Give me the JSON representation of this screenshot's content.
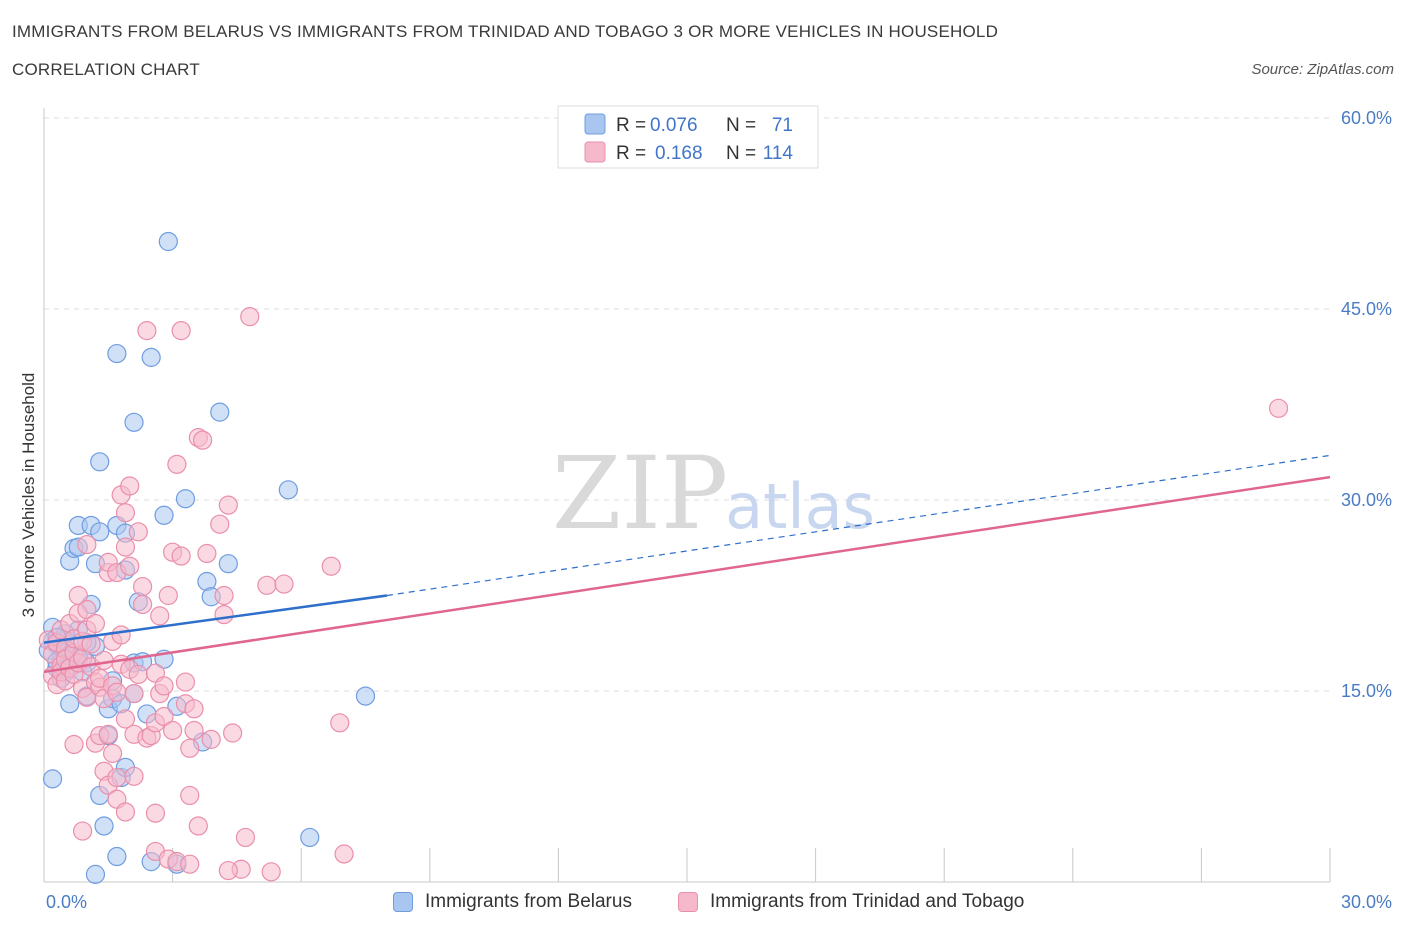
{
  "header": {
    "title": "IMMIGRANTS FROM BELARUS VS IMMIGRANTS FROM TRINIDAD AND TOBAGO 3 OR MORE VEHICLES IN HOUSEHOLD",
    "subtitle": "CORRELATION CHART",
    "source": "Source: ZipAtlas.com"
  },
  "watermark": {
    "zip": "ZIP",
    "atlas": "atlas"
  },
  "legend_top": {
    "series1": {
      "r_label": "R =",
      "r_value": "0.076",
      "n_label": "N =",
      "n_value": "71"
    },
    "series2": {
      "r_label": "R =",
      "r_value": "0.168",
      "n_label": "N =",
      "n_value": "114"
    }
  },
  "colors": {
    "belarus_fill": "#a9c6f0",
    "belarus_stroke": "#6f9de0",
    "belarus_line": "#2f6fcc",
    "trinidad_fill": "#f6b9cc",
    "trinidad_stroke": "#ea8fab",
    "trinidad_line": "#e06690",
    "tick_text": "#4a7cc6",
    "grid": "#dddddd"
  },
  "chart_data": {
    "type": "scatter",
    "title": "IMMIGRANTS FROM BELARUS VS IMMIGRANTS FROM TRINIDAD AND TOBAGO 3 OR MORE VEHICLES IN HOUSEHOLD",
    "subtitle": "CORRELATION CHART",
    "xlabel": "",
    "ylabel": "3 or more Vehicles in Household",
    "xlim": [
      0,
      30
    ],
    "ylim": [
      0,
      60
    ],
    "x_ticks": [
      "0.0%",
      "30.0%"
    ],
    "x_tick_values": [
      0,
      30
    ],
    "y_ticks": [
      "15.0%",
      "30.0%",
      "45.0%",
      "60.0%"
    ],
    "y_tick_values": [
      15,
      30,
      45,
      60
    ],
    "grid": true,
    "legend_position": "top-center",
    "series": [
      {
        "name": "Immigrants from Belarus",
        "R": 0.076,
        "N": 71,
        "trend": {
          "x": [
            0,
            8,
            30
          ],
          "y": [
            18.8,
            22.5,
            33.5
          ],
          "solid_until": 8
        },
        "points": [
          [
            0.2,
            20
          ],
          [
            0.3,
            18.6
          ],
          [
            0.4,
            17.5
          ],
          [
            0.5,
            19
          ],
          [
            0.5,
            16.5
          ],
          [
            0.6,
            17.8
          ],
          [
            0.3,
            16.8
          ],
          [
            0.8,
            19.8
          ],
          [
            0.2,
            8.1
          ],
          [
            0.6,
            25.2
          ],
          [
            0.6,
            14
          ],
          [
            0.7,
            26.2
          ],
          [
            0.8,
            26.3
          ],
          [
            0.8,
            28
          ],
          [
            1,
            17.2
          ],
          [
            1,
            14.6
          ],
          [
            1.1,
            28
          ],
          [
            1.1,
            21.8
          ],
          [
            1.2,
            25
          ],
          [
            1.2,
            18.5
          ],
          [
            1.2,
            0.6
          ],
          [
            1.3,
            33
          ],
          [
            1.3,
            6.8
          ],
          [
            1.3,
            27.5
          ],
          [
            1.4,
            4.4
          ],
          [
            1.5,
            11.5
          ],
          [
            1.5,
            13.6
          ],
          [
            1.6,
            15.8
          ],
          [
            1.6,
            14.4
          ],
          [
            1.7,
            28
          ],
          [
            1.8,
            14
          ],
          [
            1.8,
            8.2
          ],
          [
            1.7,
            2
          ],
          [
            1.7,
            41.5
          ],
          [
            1.9,
            9
          ],
          [
            1.9,
            27.4
          ],
          [
            1.9,
            24.5
          ],
          [
            2.1,
            14.8
          ],
          [
            2.1,
            17.2
          ],
          [
            2.1,
            36.1
          ],
          [
            2.2,
            22
          ],
          [
            2.3,
            17.3
          ],
          [
            2.4,
            13.2
          ],
          [
            2.5,
            41.2
          ],
          [
            2.5,
            1.6
          ],
          [
            2.8,
            28.8
          ],
          [
            2.8,
            17.5
          ],
          [
            2.9,
            50.3
          ],
          [
            3.1,
            1.4
          ],
          [
            3.1,
            13.8
          ],
          [
            3.3,
            30.1
          ],
          [
            3.7,
            11
          ],
          [
            3.8,
            23.6
          ],
          [
            3.9,
            22.4
          ],
          [
            4.1,
            36.9
          ],
          [
            4.3,
            25
          ],
          [
            5.7,
            30.8
          ],
          [
            6.2,
            3.5
          ],
          [
            7.5,
            14.6
          ],
          [
            0.1,
            18.2
          ],
          [
            0.4,
            18.4
          ],
          [
            0.3,
            17.3
          ],
          [
            0.7,
            18
          ],
          [
            0.9,
            16.5
          ],
          [
            0.5,
            19.5
          ],
          [
            0.2,
            18.9
          ],
          [
            0.6,
            17
          ],
          [
            0.4,
            16
          ],
          [
            0.8,
            17.6
          ],
          [
            1,
            18.8
          ],
          [
            0.3,
            19.2
          ]
        ]
      },
      {
        "name": "Immigrants from Trinidad and Tobago",
        "R": 0.168,
        "N": 114,
        "trend": {
          "x": [
            0,
            30
          ],
          "y": [
            16.5,
            31.8
          ]
        },
        "points": [
          [
            0.1,
            19
          ],
          [
            0.2,
            17.9
          ],
          [
            0.2,
            16.2
          ],
          [
            0.3,
            18.8
          ],
          [
            0.3,
            15.5
          ],
          [
            0.4,
            17
          ],
          [
            0.4,
            16.5
          ],
          [
            0.4,
            19.8
          ],
          [
            0.5,
            18.3
          ],
          [
            0.5,
            15.8
          ],
          [
            0.5,
            17.5
          ],
          [
            0.6,
            16.8
          ],
          [
            0.6,
            20.3
          ],
          [
            0.7,
            18
          ],
          [
            0.7,
            19.1
          ],
          [
            0.7,
            16.3
          ],
          [
            0.8,
            22.5
          ],
          [
            0.8,
            21.1
          ],
          [
            0.8,
            17.2
          ],
          [
            0.9,
            17.6
          ],
          [
            0.9,
            15.2
          ],
          [
            0.9,
            18.9
          ],
          [
            0.7,
            10.8
          ],
          [
            0.9,
            4
          ],
          [
            1,
            26.5
          ],
          [
            1,
            19.8
          ],
          [
            1,
            14.5
          ],
          [
            1,
            21.4
          ],
          [
            1.1,
            18.7
          ],
          [
            1.1,
            16.9
          ],
          [
            1.2,
            20.3
          ],
          [
            1.2,
            15.7
          ],
          [
            1.2,
            10.9
          ],
          [
            1.3,
            15.3
          ],
          [
            1.3,
            11.5
          ],
          [
            1.3,
            16
          ],
          [
            1.4,
            8.7
          ],
          [
            1.4,
            17.4
          ],
          [
            1.4,
            14.4
          ],
          [
            1.5,
            24.3
          ],
          [
            1.5,
            25.1
          ],
          [
            1.5,
            7.6
          ],
          [
            1.5,
            11.6
          ],
          [
            1.6,
            18.9
          ],
          [
            1.6,
            15.4
          ],
          [
            1.6,
            10.1
          ],
          [
            1.7,
            24.3
          ],
          [
            1.7,
            14.9
          ],
          [
            1.7,
            6.5
          ],
          [
            1.7,
            8.2
          ],
          [
            1.8,
            30.4
          ],
          [
            1.8,
            19.4
          ],
          [
            1.8,
            17.1
          ],
          [
            1.9,
            26.3
          ],
          [
            1.9,
            29
          ],
          [
            1.9,
            12.8
          ],
          [
            1.9,
            5.5
          ],
          [
            2,
            31.1
          ],
          [
            2,
            24.8
          ],
          [
            2,
            16.7
          ],
          [
            2.1,
            11.6
          ],
          [
            2.1,
            8.3
          ],
          [
            2.1,
            14.8
          ],
          [
            2.2,
            16.3
          ],
          [
            2.2,
            27.5
          ],
          [
            2.3,
            23.2
          ],
          [
            2.3,
            21.8
          ],
          [
            2.4,
            43.3
          ],
          [
            2.4,
            11.3
          ],
          [
            2.5,
            11.5
          ],
          [
            2.6,
            16.4
          ],
          [
            2.6,
            5.4
          ],
          [
            2.6,
            2.4
          ],
          [
            2.6,
            12.5
          ],
          [
            2.7,
            20.9
          ],
          [
            2.7,
            14.8
          ],
          [
            2.8,
            13
          ],
          [
            2.8,
            15.4
          ],
          [
            2.9,
            22.5
          ],
          [
            2.9,
            1.8
          ],
          [
            3,
            25.9
          ],
          [
            3,
            11.9
          ],
          [
            3.1,
            1.6
          ],
          [
            3.1,
            32.8
          ],
          [
            3.2,
            43.3
          ],
          [
            3.2,
            25.6
          ],
          [
            3.3,
            15.7
          ],
          [
            3.3,
            14
          ],
          [
            3.4,
            10.5
          ],
          [
            3.4,
            6.8
          ],
          [
            3.4,
            1.4
          ],
          [
            3.5,
            11.9
          ],
          [
            3.5,
            13.6
          ],
          [
            3.6,
            34.9
          ],
          [
            3.7,
            34.7
          ],
          [
            3.6,
            4.4
          ],
          [
            3.8,
            25.8
          ],
          [
            3.9,
            11.2
          ],
          [
            4.1,
            28.1
          ],
          [
            4.2,
            21
          ],
          [
            4.2,
            22.5
          ],
          [
            4.3,
            29.6
          ],
          [
            4.4,
            11.7
          ],
          [
            4.6,
            1
          ],
          [
            4.7,
            3.5
          ],
          [
            4.8,
            44.4
          ],
          [
            5.2,
            23.3
          ],
          [
            5.6,
            23.4
          ],
          [
            6.7,
            24.8
          ],
          [
            6.9,
            12.5
          ],
          [
            7,
            2.2
          ],
          [
            5.3,
            0.8
          ],
          [
            28.8,
            37.2
          ],
          [
            4.3,
            0.9
          ]
        ]
      }
    ]
  },
  "legend_bottom": {
    "series1": "Immigrants from Belarus",
    "series2": "Immigrants from Trinidad and Tobago"
  }
}
